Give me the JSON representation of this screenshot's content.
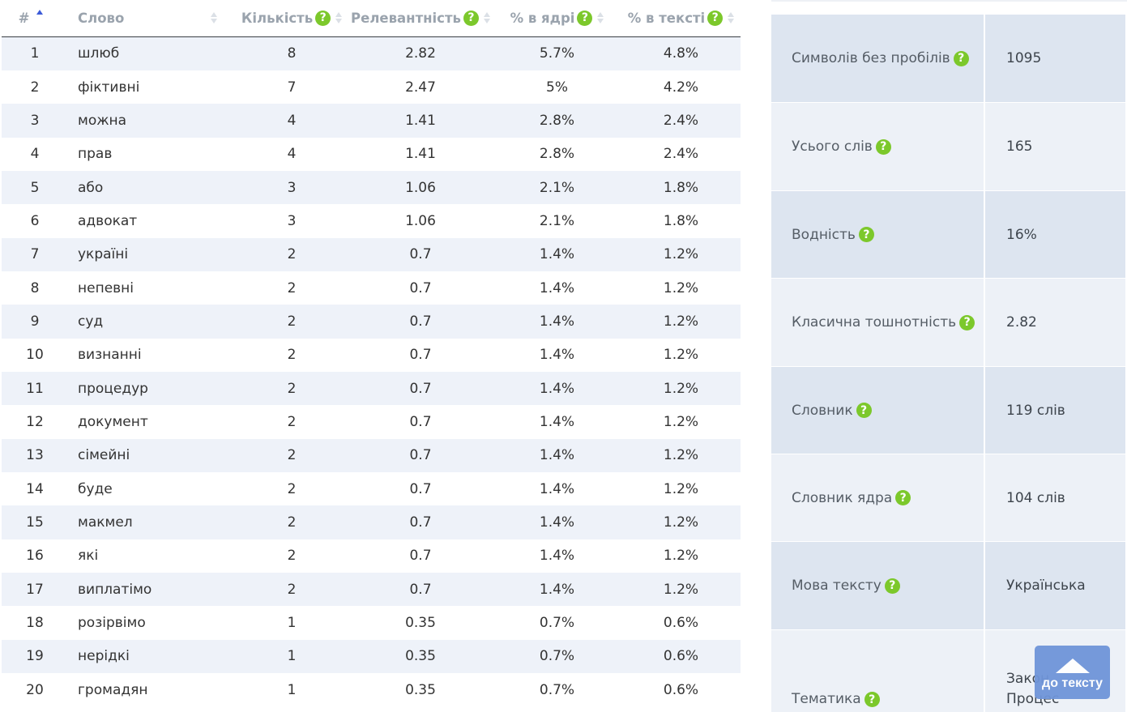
{
  "table": {
    "columns": {
      "num": "#",
      "word": "Слово",
      "count": "Кількість",
      "relevance": "Релевантність",
      "core_pct": "% в ядрі",
      "text_pct": "% в тексті"
    },
    "help_glyph": "?",
    "rows": [
      {
        "num": "1",
        "word": "шлюб",
        "count": "8",
        "relevance": "2.82",
        "core": "5.7%",
        "text": "4.8%"
      },
      {
        "num": "2",
        "word": "фіктивні",
        "count": "7",
        "relevance": "2.47",
        "core": "5%",
        "text": "4.2%"
      },
      {
        "num": "3",
        "word": "можна",
        "count": "4",
        "relevance": "1.41",
        "core": "2.8%",
        "text": "2.4%"
      },
      {
        "num": "4",
        "word": "прав",
        "count": "4",
        "relevance": "1.41",
        "core": "2.8%",
        "text": "2.4%"
      },
      {
        "num": "5",
        "word": "або",
        "count": "3",
        "relevance": "1.06",
        "core": "2.1%",
        "text": "1.8%"
      },
      {
        "num": "6",
        "word": "адвокат",
        "count": "3",
        "relevance": "1.06",
        "core": "2.1%",
        "text": "1.8%"
      },
      {
        "num": "7",
        "word": "україні",
        "count": "2",
        "relevance": "0.7",
        "core": "1.4%",
        "text": "1.2%"
      },
      {
        "num": "8",
        "word": "непевні",
        "count": "2",
        "relevance": "0.7",
        "core": "1.4%",
        "text": "1.2%"
      },
      {
        "num": "9",
        "word": "суд",
        "count": "2",
        "relevance": "0.7",
        "core": "1.4%",
        "text": "1.2%"
      },
      {
        "num": "10",
        "word": "визнанні",
        "count": "2",
        "relevance": "0.7",
        "core": "1.4%",
        "text": "1.2%"
      },
      {
        "num": "11",
        "word": "процедур",
        "count": "2",
        "relevance": "0.7",
        "core": "1.4%",
        "text": "1.2%"
      },
      {
        "num": "12",
        "word": "документ",
        "count": "2",
        "relevance": "0.7",
        "core": "1.4%",
        "text": "1.2%"
      },
      {
        "num": "13",
        "word": "сімейні",
        "count": "2",
        "relevance": "0.7",
        "core": "1.4%",
        "text": "1.2%"
      },
      {
        "num": "14",
        "word": "буде",
        "count": "2",
        "relevance": "0.7",
        "core": "1.4%",
        "text": "1.2%"
      },
      {
        "num": "15",
        "word": "макмел",
        "count": "2",
        "relevance": "0.7",
        "core": "1.4%",
        "text": "1.2%"
      },
      {
        "num": "16",
        "word": "які",
        "count": "2",
        "relevance": "0.7",
        "core": "1.4%",
        "text": "1.2%"
      },
      {
        "num": "17",
        "word": "виплатімо",
        "count": "2",
        "relevance": "0.7",
        "core": "1.4%",
        "text": "1.2%"
      },
      {
        "num": "18",
        "word": "розірвімо",
        "count": "1",
        "relevance": "0.35",
        "core": "0.7%",
        "text": "0.6%"
      },
      {
        "num": "19",
        "word": "нерідкі",
        "count": "1",
        "relevance": "0.35",
        "core": "0.7%",
        "text": "0.6%"
      },
      {
        "num": "20",
        "word": "громадян",
        "count": "1",
        "relevance": "0.35",
        "core": "0.7%",
        "text": "0.6%"
      }
    ]
  },
  "stats": [
    {
      "label": "Символів без пробілів",
      "value": "1095"
    },
    {
      "label": "Усього слів",
      "value": "165"
    },
    {
      "label": "Водність",
      "value": "16%"
    },
    {
      "label": "Класична тошнотність",
      "value": "2.82"
    },
    {
      "label": "Словник",
      "value": "119 слів"
    },
    {
      "label": "Словник ядра",
      "value": "104 слів"
    },
    {
      "label": "Мова тексту",
      "value": "Українська"
    },
    {
      "label": "Тематика",
      "value_lines": [
        "Закон",
        "Процес"
      ]
    }
  ],
  "to_text_button": "до тексту",
  "colors": {
    "help_icon": "#7cc82b",
    "sort_active": "#3c5bd8",
    "row_stripe": "#eef2f9",
    "stats_dark": "#dde5f0",
    "stats_light": "#edf1f7",
    "to_text_bg": "#6f95d9"
  }
}
